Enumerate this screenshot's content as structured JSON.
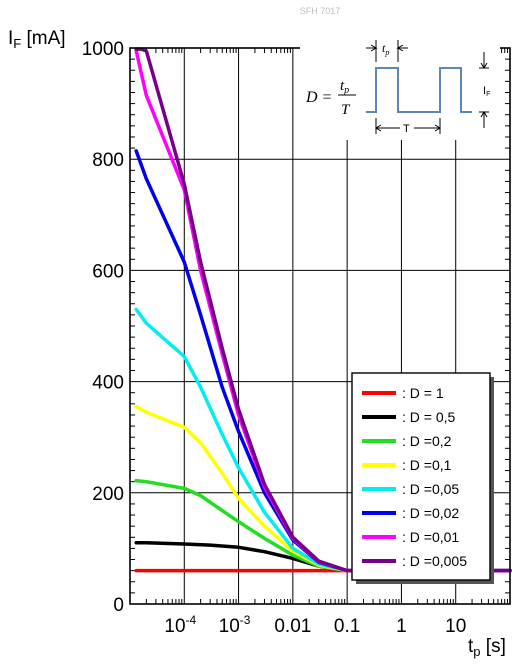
{
  "page": {
    "watermark": "SFH 7017"
  },
  "chart_data": {
    "type": "line",
    "title": "",
    "ylabel_main": "I",
    "ylabel_sub": "F",
    "ylabel_unit": " [mA]",
    "xlabel_main": "t",
    "xlabel_sub": "p",
    "xlabel_unit": " [s]",
    "xscale": "log",
    "xlim": [
      1e-05,
      100
    ],
    "ylim": [
      0,
      1000
    ],
    "grid": true,
    "legend_position": "bottom-right",
    "y_ticks": [
      {
        "value": 0,
        "label": "0"
      },
      {
        "value": 200,
        "label": "200"
      },
      {
        "value": 400,
        "label": "400"
      },
      {
        "value": 600,
        "label": "600"
      },
      {
        "value": 800,
        "label": "800"
      },
      {
        "value": 1000,
        "label": "1000"
      }
    ],
    "x_ticks": [
      {
        "value": 0.0001,
        "base": "10",
        "exp": "-4"
      },
      {
        "value": 0.001,
        "base": "10",
        "exp": "-3"
      },
      {
        "value": 0.01,
        "label": "0.01"
      },
      {
        "value": 0.1,
        "label": "0.1"
      },
      {
        "value": 1,
        "label": "1"
      },
      {
        "value": 10,
        "label": "10"
      }
    ],
    "series": [
      {
        "name": ": D = 1",
        "color": "#ff0000",
        "x": [
          1.3e-05,
          0.0001,
          0.001,
          0.01,
          0.1,
          1,
          10,
          100
        ],
        "y": [
          60,
          60,
          60,
          60,
          60,
          60,
          60,
          60
        ]
      },
      {
        "name": ": D = 0,5",
        "color": "#000000",
        "x": [
          1.3e-05,
          2e-05,
          0.0001,
          0.0003,
          0.001,
          0.003,
          0.01,
          0.03,
          0.1,
          1,
          100
        ],
        "y": [
          110,
          110,
          108,
          106,
          102,
          94,
          82,
          68,
          60,
          60,
          60
        ]
      },
      {
        "name": ": D =0,2",
        "color": "#22dd22",
        "x": [
          1.3e-05,
          2e-05,
          0.0001,
          0.0002,
          0.0005,
          0.001,
          0.003,
          0.01,
          0.03,
          0.1,
          1,
          100
        ],
        "y": [
          222,
          220,
          208,
          195,
          168,
          148,
          118,
          88,
          68,
          60,
          60,
          60
        ]
      },
      {
        "name": ": D =0,1",
        "color": "#ffff00",
        "x": [
          1.3e-05,
          2e-05,
          0.0001,
          0.0002,
          0.0005,
          0.001,
          0.003,
          0.01,
          0.03,
          0.1,
          1,
          100
        ],
        "y": [
          355,
          345,
          318,
          290,
          235,
          190,
          140,
          95,
          70,
          60,
          60,
          60
        ]
      },
      {
        "name": ": D =0,05",
        "color": "#00eeee",
        "x": [
          1.3e-05,
          2e-05,
          0.0001,
          0.0002,
          0.0005,
          0.001,
          0.003,
          0.01,
          0.03,
          0.1,
          1,
          100
        ],
        "y": [
          530,
          505,
          445,
          390,
          305,
          245,
          165,
          100,
          72,
          60,
          60,
          60
        ]
      },
      {
        "name": ": D =0,02",
        "color": "#0000ee",
        "x": [
          1.3e-05,
          2e-05,
          0.0001,
          0.0002,
          0.0005,
          0.001,
          0.003,
          0.01,
          0.03,
          0.1,
          1,
          100
        ],
        "y": [
          815,
          765,
          615,
          520,
          390,
          310,
          200,
          115,
          75,
          60,
          60,
          60
        ]
      },
      {
        "name": ": D =0,01",
        "color": "#ff00ff",
        "x": [
          1.3e-05,
          2e-05,
          0.0001,
          0.0002,
          0.0005,
          0.001,
          0.003,
          0.01,
          0.03,
          0.1,
          1,
          100
        ],
        "y": [
          995,
          915,
          745,
          600,
          450,
          340,
          210,
          118,
          76,
          60,
          60,
          60
        ]
      },
      {
        "name": ": D =0,005",
        "color": "#770088",
        "x": [
          1.3e-05,
          1.6e-05,
          2e-05,
          0.0001,
          0.0002,
          0.0005,
          0.001,
          0.003,
          0.01,
          0.03,
          0.1,
          1,
          100
        ],
        "y": [
          998,
          998,
          995,
          755,
          615,
          460,
          350,
          215,
          120,
          77,
          60,
          60,
          60
        ]
      }
    ],
    "inset": {
      "formula_lhs": "D =",
      "formula_num": "t",
      "formula_num_sub": "p",
      "formula_den": "T",
      "pulse_label": "t",
      "pulse_label_sub": "p",
      "period_label": "T",
      "amp_label": "I",
      "amp_label_sub": "F"
    }
  }
}
